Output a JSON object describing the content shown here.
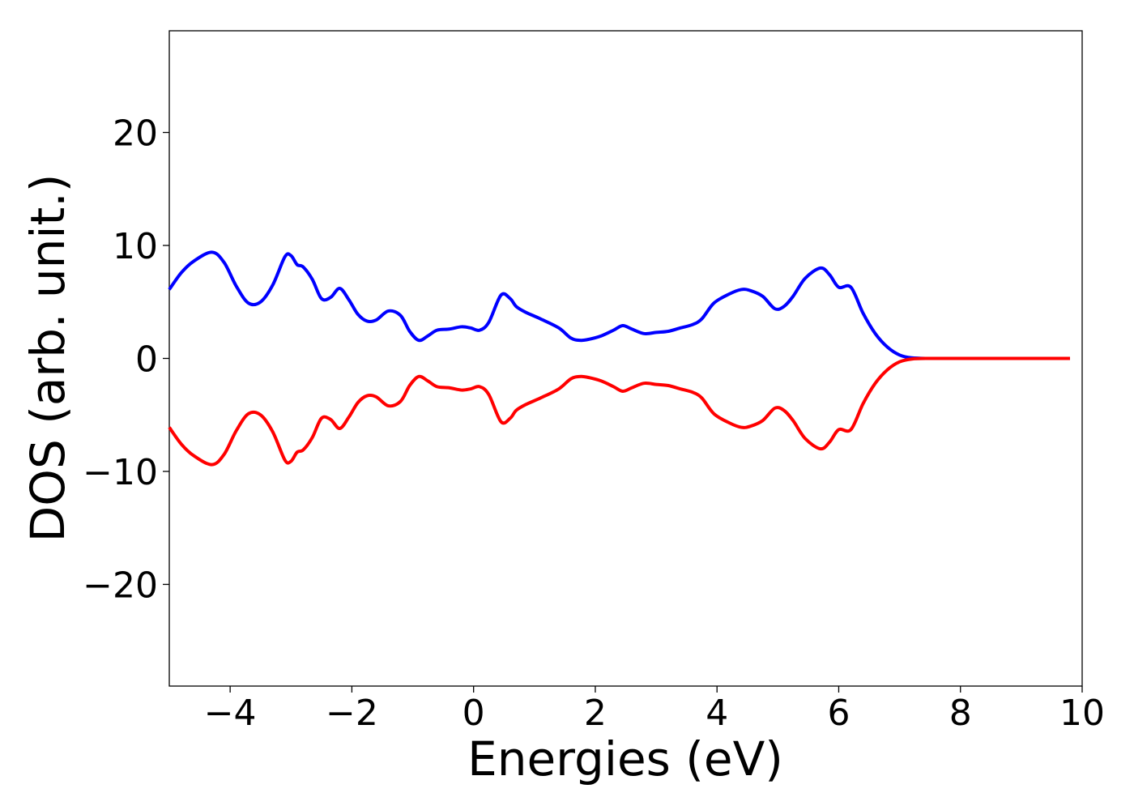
{
  "chart_data": {
    "type": "line",
    "xlabel": "Energies (eV)",
    "ylabel": "DOS (arb. unit.)",
    "xlim": [
      -5,
      10
    ],
    "ylim": [
      -29,
      29
    ],
    "xticks": [
      -4,
      -2,
      0,
      2,
      4,
      6,
      8,
      10
    ],
    "xtick_labels": [
      "−4",
      "−2",
      "0",
      "2",
      "4",
      "6",
      "8",
      "10"
    ],
    "yticks": [
      -20,
      -10,
      0,
      10,
      20
    ],
    "ytick_labels": [
      "−20",
      "−10",
      "0",
      "10",
      "20"
    ],
    "grid": false,
    "series": [
      {
        "color": "#0000ff",
        "x": [
          -5.0,
          -4.8,
          -4.6,
          -4.3,
          -4.1,
          -3.9,
          -3.7,
          -3.5,
          -3.3,
          -3.1,
          -3.0,
          -2.9,
          -2.8,
          -2.65,
          -2.5,
          -2.35,
          -2.2,
          -2.05,
          -1.9,
          -1.75,
          -1.6,
          -1.4,
          -1.2,
          -1.05,
          -0.9,
          -0.75,
          -0.6,
          -0.4,
          -0.2,
          -0.05,
          0.1,
          0.25,
          0.45,
          0.6,
          0.7,
          0.85,
          1.1,
          1.4,
          1.6,
          1.75,
          1.9,
          2.1,
          2.3,
          2.45,
          2.6,
          2.8,
          3.0,
          3.2,
          3.4,
          3.6,
          3.75,
          3.95,
          4.2,
          4.4,
          4.55,
          4.75,
          4.95,
          5.1,
          5.25,
          5.45,
          5.7,
          5.85,
          6.0,
          6.2,
          6.4,
          6.6,
          6.8,
          7.0,
          7.2,
          7.5,
          8.0,
          9.0,
          9.8
        ],
        "y": [
          6.1,
          7.6,
          8.6,
          9.4,
          8.5,
          6.4,
          4.9,
          5.0,
          6.5,
          9.0,
          9.1,
          8.3,
          8.1,
          7.0,
          5.3,
          5.4,
          6.2,
          5.2,
          3.9,
          3.3,
          3.4,
          4.2,
          3.8,
          2.4,
          1.6,
          2.0,
          2.5,
          2.6,
          2.8,
          2.7,
          2.5,
          3.2,
          5.6,
          5.3,
          4.6,
          4.1,
          3.5,
          2.7,
          1.8,
          1.6,
          1.7,
          2.0,
          2.5,
          2.9,
          2.6,
          2.2,
          2.3,
          2.4,
          2.7,
          3.0,
          3.5,
          4.9,
          5.7,
          6.1,
          6.0,
          5.5,
          4.4,
          4.6,
          5.5,
          7.1,
          8.0,
          7.4,
          6.3,
          6.3,
          4.0,
          2.2,
          1.0,
          0.3,
          0.05,
          0.0,
          0.0,
          0.0,
          0.0
        ]
      },
      {
        "color": "#ff0000",
        "x": [
          -5.0,
          -4.8,
          -4.6,
          -4.3,
          -4.1,
          -3.9,
          -3.7,
          -3.5,
          -3.3,
          -3.1,
          -3.0,
          -2.9,
          -2.8,
          -2.65,
          -2.5,
          -2.35,
          -2.2,
          -2.05,
          -1.9,
          -1.75,
          -1.6,
          -1.4,
          -1.2,
          -1.05,
          -0.9,
          -0.75,
          -0.6,
          -0.4,
          -0.2,
          -0.05,
          0.1,
          0.25,
          0.45,
          0.6,
          0.7,
          0.85,
          1.1,
          1.4,
          1.6,
          1.75,
          1.9,
          2.1,
          2.3,
          2.45,
          2.6,
          2.8,
          3.0,
          3.2,
          3.4,
          3.6,
          3.75,
          3.95,
          4.2,
          4.4,
          4.55,
          4.75,
          4.95,
          5.1,
          5.25,
          5.45,
          5.7,
          5.85,
          6.0,
          6.2,
          6.4,
          6.6,
          6.8,
          7.0,
          7.2,
          7.5,
          8.0,
          9.0,
          9.8
        ],
        "y": [
          -6.1,
          -7.6,
          -8.6,
          -9.4,
          -8.5,
          -6.4,
          -4.9,
          -5.0,
          -6.5,
          -9.0,
          -9.1,
          -8.3,
          -8.1,
          -7.0,
          -5.3,
          -5.4,
          -6.2,
          -5.2,
          -3.9,
          -3.3,
          -3.4,
          -4.2,
          -3.8,
          -2.4,
          -1.6,
          -2.0,
          -2.5,
          -2.6,
          -2.8,
          -2.7,
          -2.5,
          -3.2,
          -5.6,
          -5.3,
          -4.6,
          -4.1,
          -3.5,
          -2.7,
          -1.8,
          -1.6,
          -1.7,
          -2.0,
          -2.5,
          -2.9,
          -2.6,
          -2.2,
          -2.3,
          -2.4,
          -2.7,
          -3.0,
          -3.5,
          -4.9,
          -5.7,
          -6.1,
          -6.0,
          -5.5,
          -4.4,
          -4.6,
          -5.5,
          -7.1,
          -8.0,
          -7.4,
          -6.3,
          -6.3,
          -4.0,
          -2.2,
          -1.0,
          -0.3,
          -0.05,
          0.0,
          0.0,
          0.0,
          0.0
        ]
      }
    ]
  }
}
